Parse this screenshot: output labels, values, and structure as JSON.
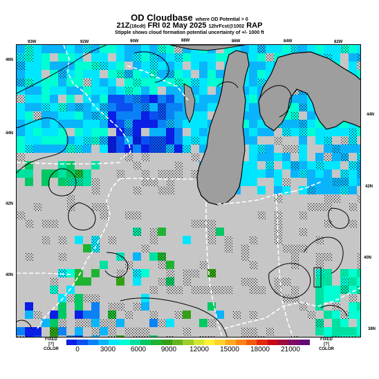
{
  "header": {
    "title": "OD Cloudbase",
    "title_note": "where OD Potential > 0",
    "valid_time": "21Z",
    "local_time": "(16cdt)",
    "date": "FRI 02 May 2025",
    "run": "12hrFcst@1002",
    "model": "RAP",
    "subtitle": "Stipple shows cloud formation potential uncertainty of +/- 1000 ft"
  },
  "map": {
    "region": "Upper Midwest / Great Lakes",
    "background_color": "#c6c6c6",
    "lake_color": "#9e9e9e",
    "stipple_meaning": "cloud formation potential uncertainty",
    "lon_labels_top": [
      "93W",
      "92W",
      "90W",
      "88W",
      "86W",
      "84W",
      "82W"
    ],
    "lat_labels_left": [
      "46N",
      "44N",
      "42N",
      "40N"
    ],
    "lat_labels_right": [
      "44N",
      "42N",
      "40N",
      "38N"
    ]
  },
  "colorbar": {
    "units": "ft",
    "tick_labels": [
      "0",
      "3000",
      "6000",
      "9000",
      "12000",
      "15000",
      "18000",
      "21000"
    ],
    "colors": [
      "#0a1ee6",
      "#0a50f0",
      "#0a82f5",
      "#0ab4fa",
      "#00e6ff",
      "#00ffd2",
      "#00e0a0",
      "#00c864",
      "#1eb432",
      "#32a014",
      "#64b41e",
      "#a0cd28",
      "#d2e632",
      "#fff032",
      "#ffd228",
      "#ffaa1e",
      "#ff8214",
      "#f55a0a",
      "#e6280a",
      "#c80a14",
      "#a00a3c",
      "#7d0a64",
      "#640a78"
    ],
    "left_label_1": "FIXED",
    "left_label_2": "[?]",
    "left_label_3": "COLOR",
    "right_label_1": "FIXED",
    "right_label_2": "[?]",
    "right_label_3": "COLOR"
  }
}
